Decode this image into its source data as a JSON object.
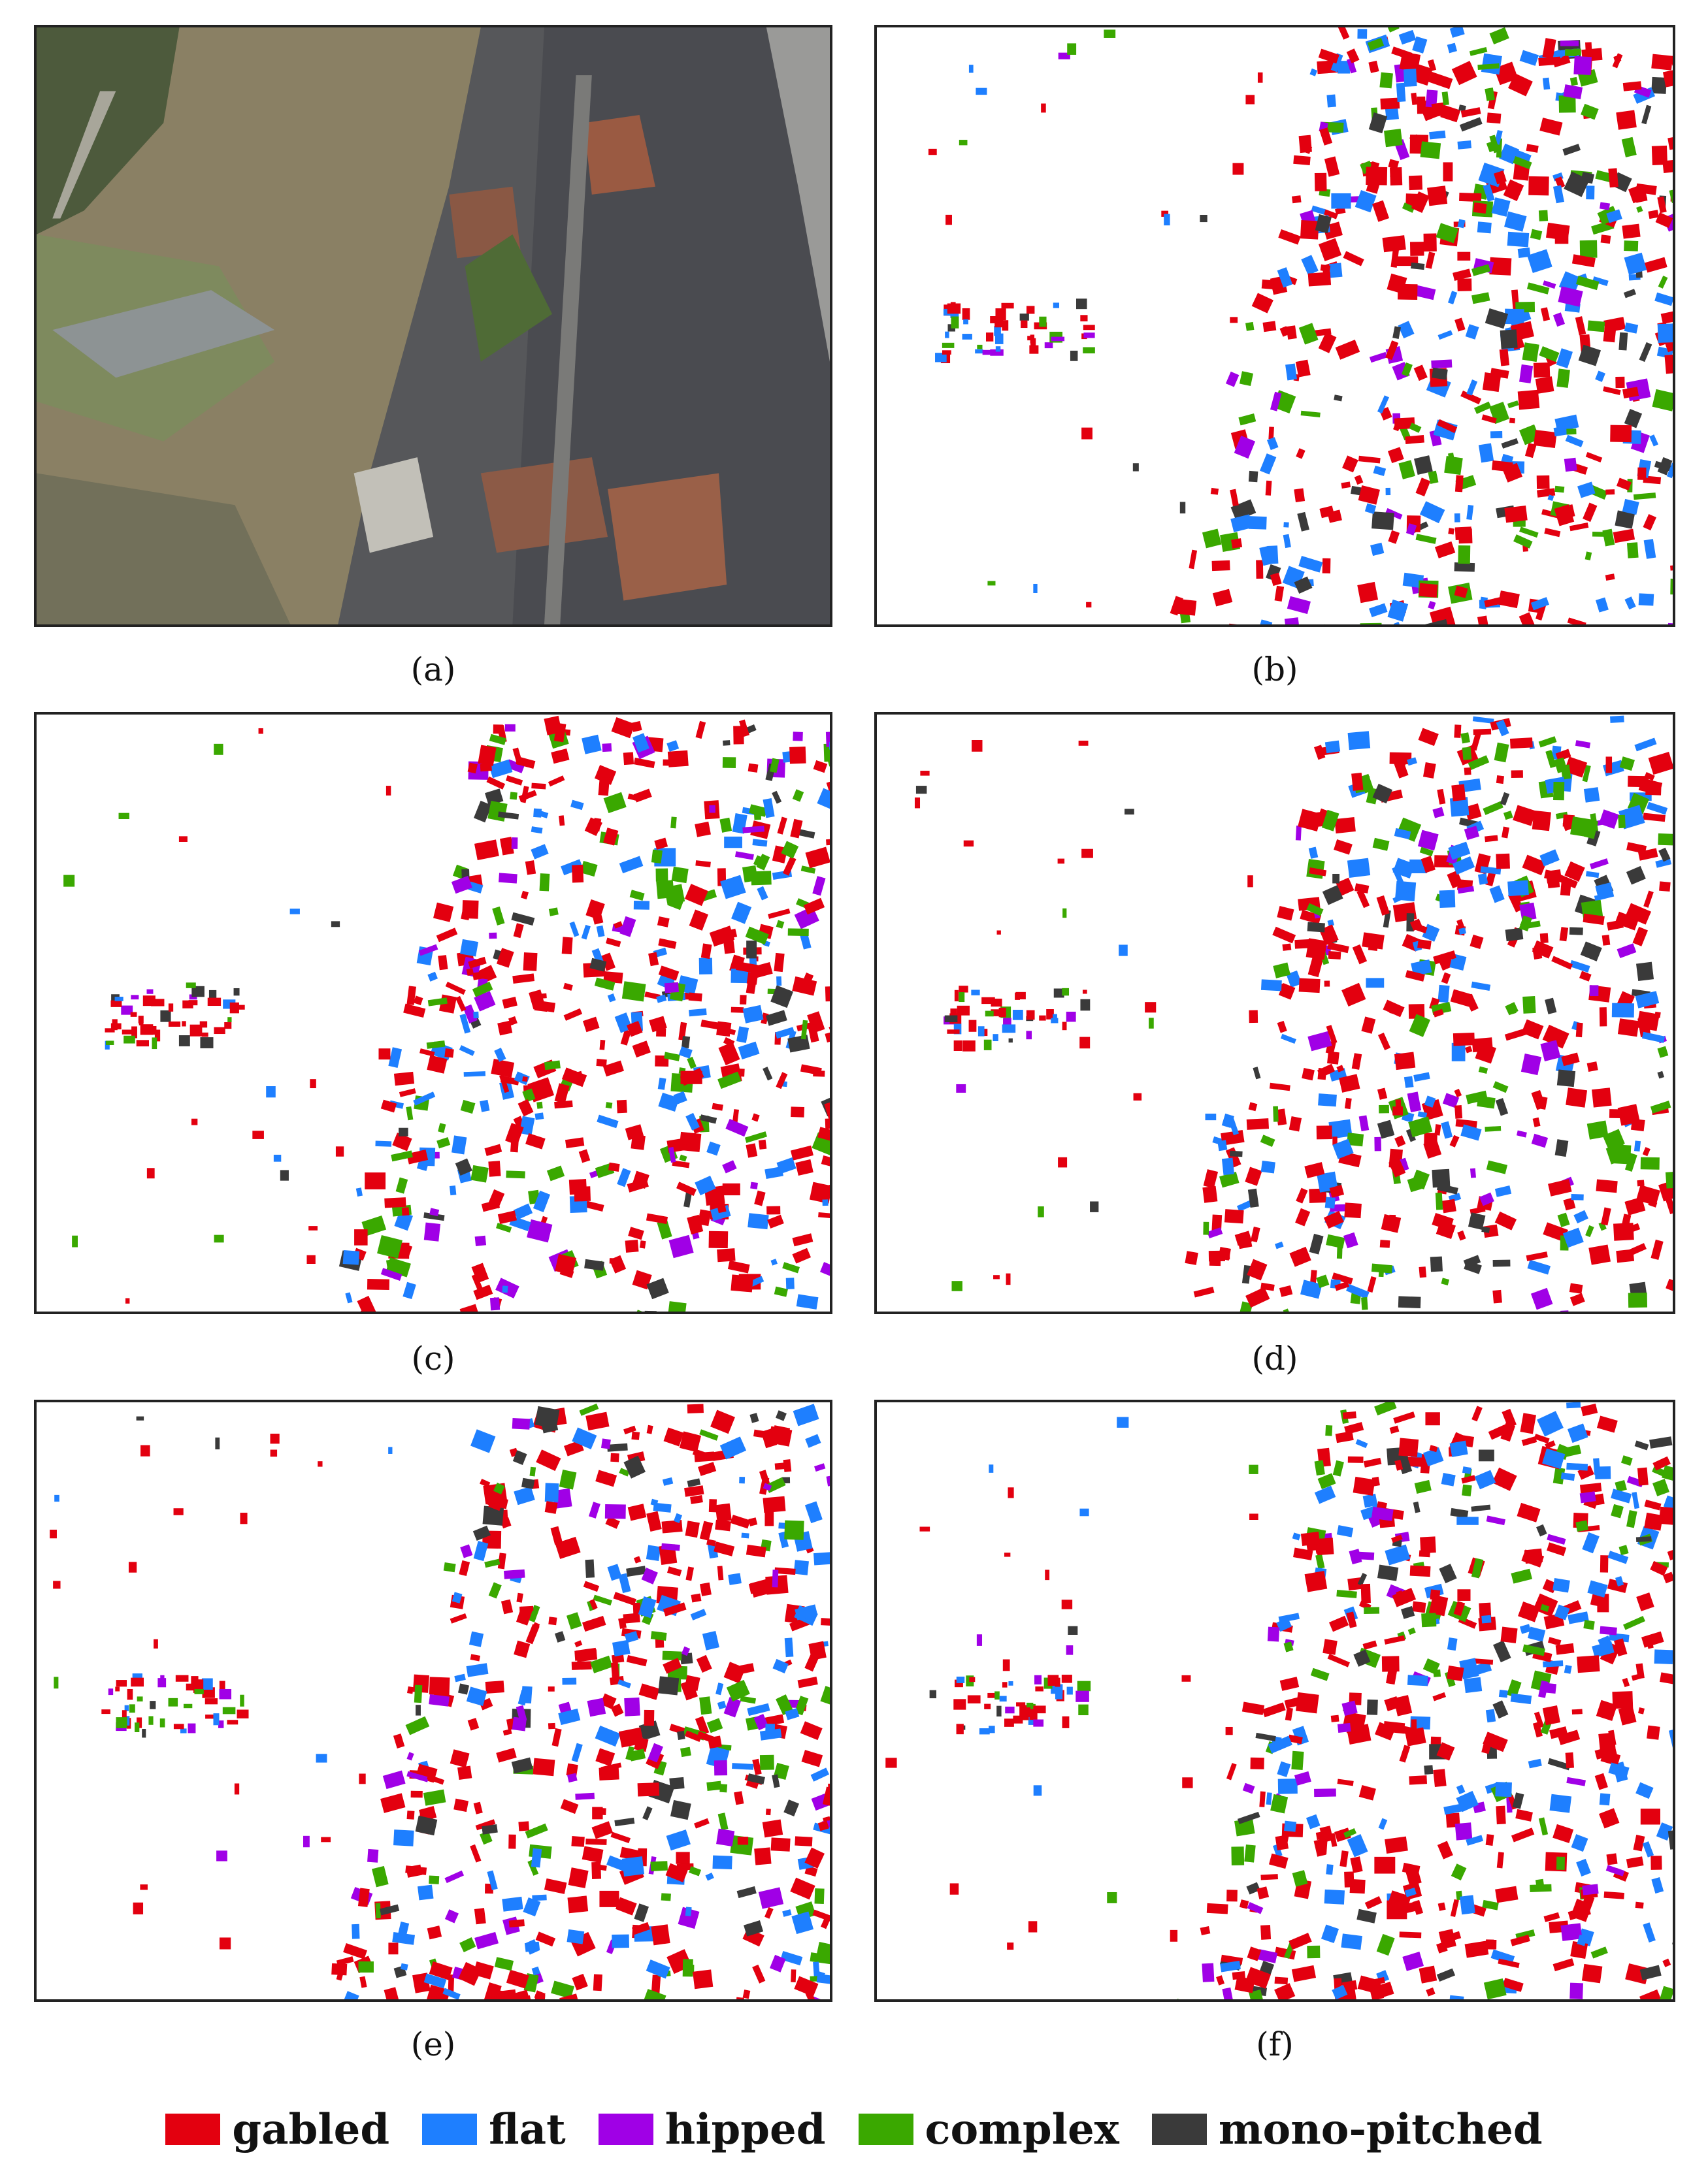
{
  "panels": [
    {
      "id": "a",
      "caption": "(a)",
      "kind": "satellite-image"
    },
    {
      "id": "b",
      "caption": "(b)",
      "kind": "roof-type-map"
    },
    {
      "id": "c",
      "caption": "(c)",
      "kind": "roof-type-map"
    },
    {
      "id": "d",
      "caption": "(d)",
      "kind": "roof-type-map"
    },
    {
      "id": "e",
      "caption": "(e)",
      "kind": "roof-type-map"
    },
    {
      "id": "f",
      "caption": "(f)",
      "kind": "roof-type-map"
    }
  ],
  "legend": [
    {
      "label": "gabled",
      "color": "#e3000f"
    },
    {
      "label": "flat",
      "color": "#1e7fff"
    },
    {
      "label": "hipped",
      "color": "#a000e6"
    },
    {
      "label": "complex",
      "color": "#3aa800"
    },
    {
      "label": "mono-pitched",
      "color": "#3a3a3a"
    }
  ],
  "colors": {
    "gabled": "#e3000f",
    "flat": "#1e7fff",
    "hipped": "#a000e6",
    "complex": "#3aa800",
    "mono_pitched": "#3a3a3a",
    "panel_border": "#222222"
  }
}
